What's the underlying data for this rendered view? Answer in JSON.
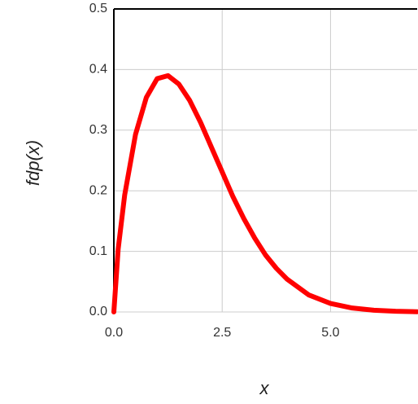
{
  "chart_data": {
    "type": "line",
    "xlabel": "x",
    "ylabel": "fdp(x)",
    "x": [
      0,
      0.1,
      0.25,
      0.5,
      0.75,
      1.0,
      1.25,
      1.5,
      1.75,
      2.0,
      2.25,
      2.5,
      2.75,
      3.0,
      3.25,
      3.5,
      3.75,
      4.0,
      4.5,
      5.0,
      5.5,
      6.0,
      6.5,
      7.0
    ],
    "series": [
      {
        "color": "#ff0000",
        "values": [
          0,
          0.104,
          0.193,
          0.293,
          0.354,
          0.385,
          0.39,
          0.376,
          0.349,
          0.313,
          0.272,
          0.231,
          0.19,
          0.154,
          0.122,
          0.094,
          0.072,
          0.054,
          0.028,
          0.014,
          0.0065,
          0.0028,
          0.0011,
          0.0004
        ]
      }
    ],
    "xlim": [
      0,
      7
    ],
    "ylim": [
      0,
      0.5
    ],
    "xticks": [
      {
        "value": 0,
        "label": "0.0"
      },
      2.5,
      {
        "value": 5,
        "label": "5.0"
      }
    ],
    "yticks": [
      {
        "value": 0,
        "label": "0.0"
      },
      0.1,
      0.2,
      0.3,
      0.4,
      {
        "value": 0.5,
        "label": "0.5"
      }
    ],
    "grid": true
  }
}
